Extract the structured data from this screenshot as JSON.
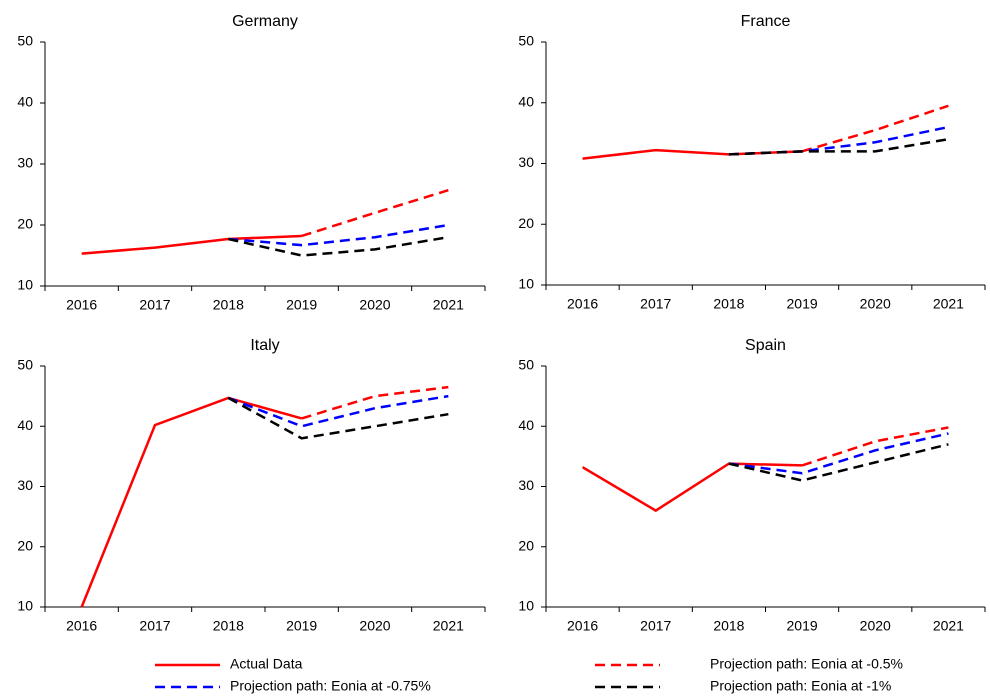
{
  "chart_data": [
    {
      "type": "line",
      "title": "Germany",
      "categories": [
        "2016",
        "2017",
        "2018",
        "2019",
        "2020",
        "2021"
      ],
      "ylim": [
        10,
        50
      ],
      "yticks": [
        10,
        20,
        30,
        40,
        50
      ],
      "legend": "bottom",
      "series": [
        {
          "name": "Actual Data",
          "color": "#ff0000",
          "dashed": false,
          "values": [
            15.3,
            16.3,
            17.7,
            18.2,
            null,
            null
          ]
        },
        {
          "name": "Projection path: Eonia at -0.5%",
          "color": "#ff0000",
          "dashed": true,
          "values": [
            null,
            null,
            null,
            18.2,
            22,
            25.7
          ]
        },
        {
          "name": "Projection path: Eonia at -0.75%",
          "color": "#0000ff",
          "dashed": true,
          "values": [
            null,
            null,
            17.7,
            16.7,
            18,
            20
          ]
        },
        {
          "name": "Projection path: Eonia at -1%",
          "color": "#000000",
          "dashed": true,
          "values": [
            null,
            null,
            17.7,
            15,
            16,
            18
          ]
        }
      ]
    },
    {
      "type": "line",
      "title": "France",
      "categories": [
        "2016",
        "2017",
        "2018",
        "2019",
        "2020",
        "2021"
      ],
      "ylim": [
        10,
        50
      ],
      "yticks": [
        10,
        20,
        30,
        40,
        50
      ],
      "series": [
        {
          "color": "#ff0000",
          "dashed": false,
          "values": [
            30.8,
            32.2,
            31.5,
            32,
            null,
            null
          ]
        },
        {
          "color": "#ff0000",
          "dashed": true,
          "values": [
            null,
            null,
            null,
            32,
            35.5,
            39.5
          ]
        },
        {
          "color": "#0000ff",
          "dashed": true,
          "values": [
            null,
            null,
            31.5,
            32,
            33.5,
            36
          ]
        },
        {
          "color": "#000000",
          "dashed": true,
          "values": [
            null,
            null,
            31.5,
            32,
            32,
            34
          ]
        }
      ]
    },
    {
      "type": "line",
      "title": "Italy",
      "categories": [
        "2016",
        "2017",
        "2018",
        "2019",
        "2020",
        "2021"
      ],
      "ylim": [
        10,
        50
      ],
      "yticks": [
        10,
        20,
        30,
        40,
        50
      ],
      "series": [
        {
          "color": "#ff0000",
          "dashed": false,
          "values": [
            10,
            40.2,
            44.7,
            41.3,
            null,
            null
          ]
        },
        {
          "color": "#ff0000",
          "dashed": true,
          "values": [
            null,
            null,
            null,
            41.3,
            45,
            46.5
          ]
        },
        {
          "color": "#0000ff",
          "dashed": true,
          "values": [
            null,
            null,
            44.7,
            40,
            43,
            45
          ]
        },
        {
          "color": "#000000",
          "dashed": true,
          "values": [
            null,
            null,
            44.7,
            38,
            40,
            42
          ]
        }
      ]
    },
    {
      "type": "line",
      "title": "Spain",
      "categories": [
        "2016",
        "2017",
        "2018",
        "2019",
        "2020",
        "2021"
      ],
      "ylim": [
        10,
        50
      ],
      "yticks": [
        10,
        20,
        30,
        40,
        50
      ],
      "series": [
        {
          "color": "#ff0000",
          "dashed": false,
          "values": [
            33.2,
            26,
            33.8,
            33.5,
            null,
            null
          ]
        },
        {
          "color": "#ff0000",
          "dashed": true,
          "values": [
            null,
            null,
            null,
            33.5,
            37.5,
            39.8
          ]
        },
        {
          "color": "#0000ff",
          "dashed": true,
          "values": [
            null,
            null,
            33.8,
            32.2,
            36,
            38.8
          ]
        },
        {
          "color": "#000000",
          "dashed": true,
          "values": [
            null,
            null,
            33.8,
            31,
            34,
            37
          ]
        }
      ]
    }
  ]
}
